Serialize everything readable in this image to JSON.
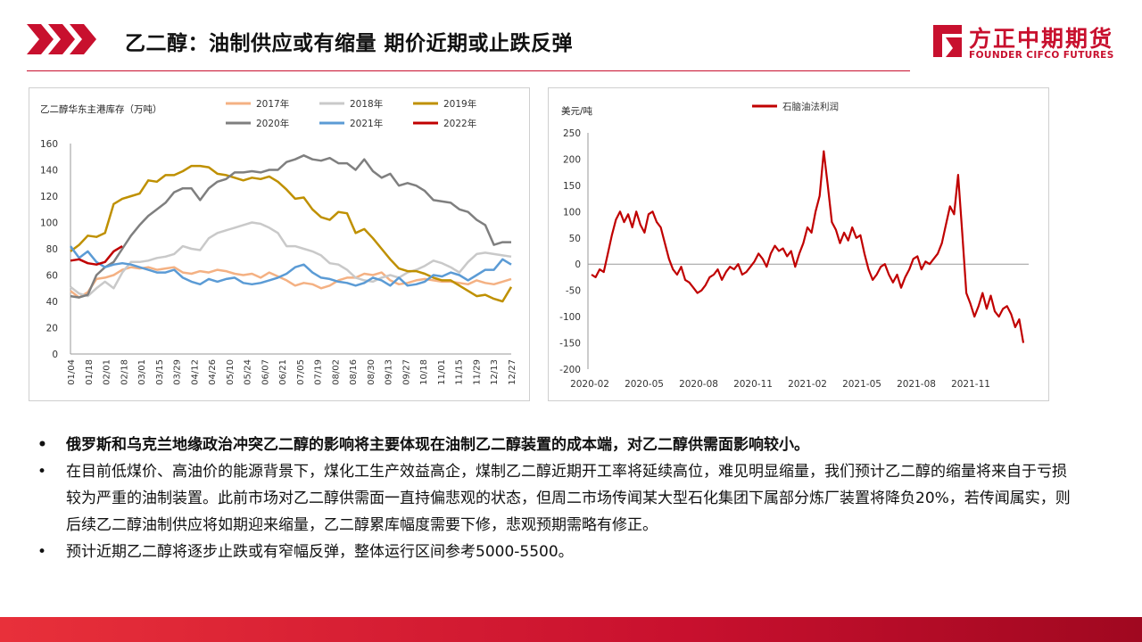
{
  "header": {
    "title": "乙二醇：油制供应或有缩量 期价近期或止跌反弹",
    "logo_cn": "方正中期期货",
    "logo_en": "FOUNDER CIFCO FUTURES"
  },
  "colors": {
    "brand": "#c8102e"
  },
  "chart_data": [
    {
      "type": "line",
      "title": "乙二醇华东主港库存（万吨）",
      "ylim": [
        0,
        160
      ],
      "yticks": [
        0,
        20,
        40,
        60,
        80,
        100,
        120,
        140,
        160
      ],
      "xlabels": [
        "01/04",
        "01/18",
        "02/01",
        "02/18",
        "03/01",
        "03/15",
        "03/29",
        "04/12",
        "04/26",
        "05/10",
        "05/24",
        "06/07",
        "06/21",
        "07/05",
        "07/19",
        "08/02",
        "08/16",
        "08/30",
        "09/13",
        "09/27",
        "10/18",
        "11/01",
        "11/15",
        "11/29",
        "12/13",
        "12/27"
      ],
      "x_count": 52,
      "grid": false,
      "legend_position": "top",
      "series": [
        {
          "name": "2017年",
          "color": "#f4b183",
          "values": [
            48,
            43,
            47,
            57,
            58,
            60,
            64,
            66,
            65,
            66,
            64,
            65,
            66,
            62,
            61,
            63,
            62,
            64,
            63,
            61,
            60,
            61,
            58,
            62,
            59,
            56,
            52,
            54,
            53,
            50,
            52,
            56,
            58,
            58,
            61,
            60,
            62,
            56,
            53,
            54,
            56,
            57,
            56,
            55,
            55,
            54,
            53,
            56,
            54,
            53,
            55,
            57
          ]
        },
        {
          "name": "2018年",
          "color": "#c9c9c9",
          "values": [
            51,
            46,
            44,
            50,
            55,
            50,
            62,
            70,
            70,
            71,
            73,
            74,
            76,
            82,
            80,
            79,
            88,
            92,
            94,
            96,
            98,
            100,
            99,
            96,
            92,
            82,
            82,
            80,
            78,
            75,
            69,
            68,
            64,
            58,
            56,
            55,
            58,
            60,
            58,
            62,
            64,
            67,
            71,
            69,
            66,
            62,
            70,
            76,
            77,
            76,
            75,
            74
          ]
        },
        {
          "name": "2019年",
          "color": "#bf9000",
          "values": [
            78,
            83,
            90,
            89,
            92,
            114,
            118,
            120,
            122,
            132,
            131,
            136,
            136,
            139,
            143,
            143,
            142,
            137,
            136,
            134,
            132,
            134,
            133,
            135,
            131,
            125,
            118,
            119,
            110,
            104,
            102,
            108,
            107,
            92,
            95,
            88,
            80,
            72,
            65,
            63,
            63,
            61,
            58,
            56,
            56,
            52,
            48,
            44,
            45,
            42,
            40,
            51
          ]
        },
        {
          "name": "2020年",
          "color": "#7f7f7f",
          "values": [
            44,
            43,
            45,
            60,
            66,
            70,
            80,
            90,
            98,
            105,
            110,
            115,
            123,
            126,
            126,
            117,
            126,
            131,
            133,
            138,
            138,
            139,
            138,
            140,
            140,
            146,
            148,
            151,
            148,
            147,
            149,
            145,
            145,
            140,
            148,
            139,
            134,
            137,
            128,
            130,
            128,
            124,
            117,
            116,
            115,
            110,
            108,
            102,
            98,
            83,
            85,
            85
          ]
        },
        {
          "name": "2021年",
          "color": "#5b9bd5",
          "values": [
            82,
            73,
            78,
            70,
            66,
            68,
            69,
            68,
            66,
            64,
            62,
            62,
            64,
            58,
            55,
            53,
            57,
            55,
            57,
            58,
            54,
            53,
            54,
            56,
            58,
            61,
            66,
            68,
            62,
            58,
            57,
            55,
            54,
            52,
            54,
            58,
            56,
            52,
            58,
            52,
            53,
            55,
            60,
            59,
            62,
            60,
            56,
            60,
            64,
            64,
            72,
            68
          ]
        },
        {
          "name": "2022年",
          "color": "#c00000",
          "values": [
            71,
            72,
            69,
            68,
            70,
            78,
            82
          ]
        }
      ]
    },
    {
      "type": "line",
      "ylabel": "美元/吨",
      "ylim": [
        -200,
        250
      ],
      "yticks": [
        -200,
        -150,
        -100,
        -50,
        0,
        50,
        100,
        150,
        200,
        250
      ],
      "xlabels": [
        "2020-02",
        "2020-05",
        "2020-08",
        "2020-11",
        "2021-02",
        "2021-05",
        "2021-08",
        "2021-11"
      ],
      "grid": false,
      "legend_position": "top",
      "series": [
        {
          "name": "石脑油法利润",
          "color": "#c00000",
          "values": [
            -20,
            -25,
            -10,
            -15,
            20,
            55,
            85,
            100,
            80,
            95,
            70,
            100,
            75,
            60,
            95,
            100,
            80,
            70,
            40,
            10,
            -10,
            -20,
            -5,
            -30,
            -35,
            -45,
            -55,
            -50,
            -40,
            -25,
            -20,
            -10,
            -30,
            -15,
            -5,
            -10,
            0,
            -20,
            -15,
            -5,
            5,
            20,
            10,
            -5,
            20,
            35,
            25,
            30,
            15,
            25,
            -5,
            20,
            40,
            70,
            60,
            100,
            130,
            215,
            150,
            80,
            65,
            40,
            60,
            45,
            70,
            50,
            55,
            20,
            -10,
            -30,
            -20,
            -5,
            0,
            -20,
            -35,
            -20,
            -45,
            -25,
            -10,
            10,
            15,
            -10,
            5,
            0,
            10,
            20,
            40,
            75,
            110,
            95,
            170,
            60,
            -55,
            -75,
            -100,
            -80,
            -55,
            -85,
            -60,
            -90,
            -100,
            -85,
            -80,
            -95,
            -120,
            -105,
            -150
          ]
        }
      ]
    }
  ],
  "bullets": [
    {
      "text": "俄罗斯和乌克兰地缘政治冲突乙二醇的影响将主要体现在油制乙二醇装置的成本端，对乙二醇供需面影响较小。",
      "bold": true
    },
    {
      "text": "在目前低煤价、高油价的能源背景下，煤化工生产效益高企，煤制乙二醇近期开工率将延续高位，难见明显缩量，我们预计乙二醇的缩量将来自于亏损较为严重的油制装置。此前市场对乙二醇供需面一直持偏悲观的状态，但周二市场传闻某大型石化集团下属部分炼厂装置将降负20%，若传闻属实，则后续乙二醇油制供应将如期迎来缩量，乙二醇累库幅度需要下修，悲观预期需略有修正。",
      "bold": false
    },
    {
      "text": "预计近期乙二醇将逐步止跌或有窄幅反弹，整体运行区间参考5000-5500。",
      "bold": false
    }
  ]
}
